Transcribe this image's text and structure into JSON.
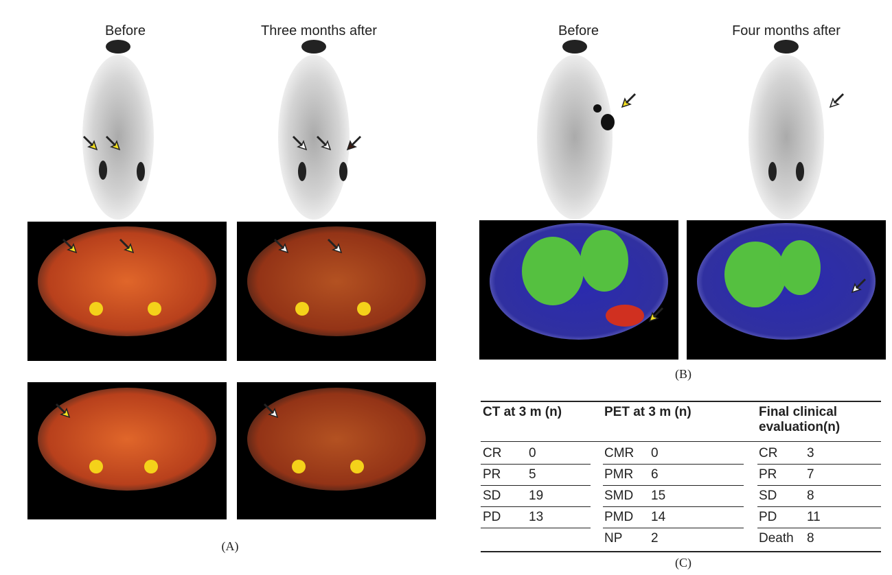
{
  "panel_a": {
    "labels": [
      "Before",
      "Three months after"
    ],
    "caption": "(A)"
  },
  "panel_b": {
    "labels": [
      "Before",
      "Four months after"
    ],
    "caption": "(B)"
  },
  "table": {
    "caption": "(C)",
    "columns": [
      {
        "header": "CT at 3 m (n)",
        "rows": [
          [
            "CR",
            0
          ],
          [
            "PR",
            5
          ],
          [
            "SD",
            19
          ],
          [
            "PD",
            13
          ]
        ]
      },
      {
        "header": "PET at 3 m (n)",
        "rows": [
          [
            "CMR",
            0
          ],
          [
            "PMR",
            6
          ],
          [
            "SMD",
            15
          ],
          [
            "PMD",
            14
          ],
          [
            "NP",
            2
          ]
        ]
      },
      {
        "header": "Final clinical evaluation(n)",
        "rows": [
          [
            "CR",
            3
          ],
          [
            "PR",
            7
          ],
          [
            "SD",
            8
          ],
          [
            "PD",
            11
          ],
          [
            "Death",
            8
          ]
        ]
      }
    ]
  }
}
